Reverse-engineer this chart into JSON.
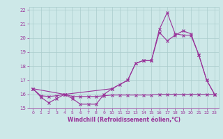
{
  "background_color": "#cde8e8",
  "grid_color": "#aacccc",
  "line_color": "#993399",
  "xlabel": "Windchill (Refroidissement éolien,°C)",
  "xlabel_color": "#993399",
  "tick_color": "#993399",
  "xlim": [
    -0.5,
    23.5
  ],
  "ylim": [
    15.0,
    22.2
  ],
  "yticks": [
    15,
    16,
    17,
    18,
    19,
    20,
    21,
    22
  ],
  "xticks": [
    0,
    1,
    2,
    3,
    4,
    5,
    6,
    7,
    8,
    9,
    10,
    11,
    12,
    13,
    14,
    15,
    16,
    17,
    18,
    19,
    20,
    21,
    22,
    23
  ],
  "series1_x": [
    0,
    1,
    2,
    3,
    4,
    5,
    6,
    7,
    8,
    9,
    10,
    11,
    12,
    13,
    14,
    15,
    16,
    17,
    18,
    19,
    20,
    21,
    22,
    23
  ],
  "series1_y": [
    16.4,
    15.8,
    15.4,
    15.7,
    16.0,
    15.7,
    15.3,
    15.3,
    15.3,
    16.0,
    16.4,
    16.7,
    17.0,
    18.2,
    18.4,
    18.4,
    20.6,
    21.8,
    20.3,
    20.2,
    20.2,
    18.8,
    17.0,
    16.0
  ],
  "series2_x": [
    0,
    1,
    2,
    3,
    4,
    5,
    6,
    7,
    8,
    9,
    10,
    11,
    12,
    13,
    14,
    15,
    16,
    17,
    18,
    19,
    20,
    21,
    22,
    23
  ],
  "series2_y": [
    16.4,
    15.9,
    15.85,
    15.9,
    16.0,
    15.85,
    15.85,
    15.85,
    15.85,
    15.9,
    15.95,
    15.95,
    15.95,
    15.95,
    15.95,
    15.95,
    16.0,
    16.0,
    16.0,
    16.0,
    16.0,
    16.0,
    16.0,
    16.0
  ],
  "series3_x": [
    0,
    4,
    10,
    12,
    13,
    14,
    15,
    16,
    17,
    18,
    19,
    20,
    21,
    22,
    23
  ],
  "series3_y": [
    16.4,
    16.0,
    16.4,
    17.0,
    18.2,
    18.4,
    18.4,
    20.4,
    19.8,
    20.2,
    20.5,
    20.3,
    18.8,
    17.0,
    16.0
  ]
}
